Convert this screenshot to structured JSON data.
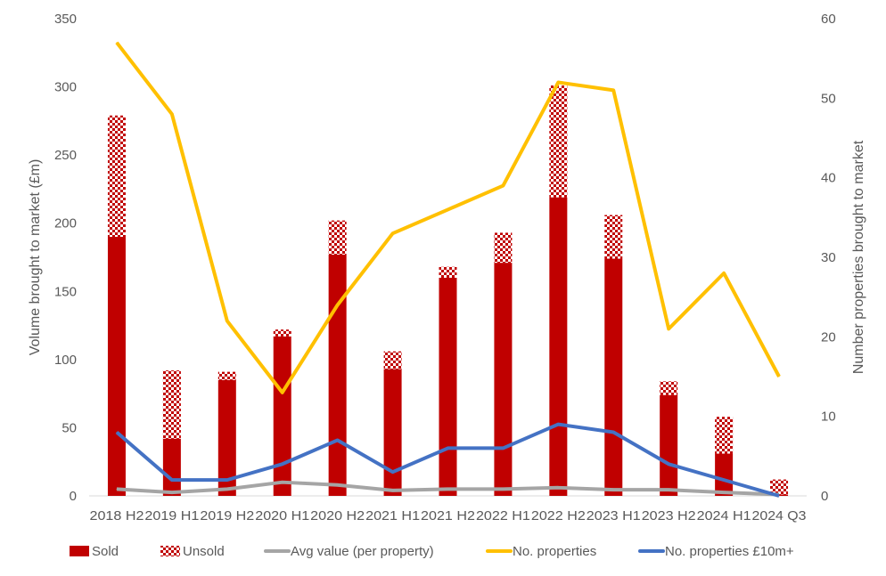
{
  "chart_data": {
    "type": "bar",
    "categories": [
      "2018 H2",
      "2019 H1",
      "2019 H2",
      "2020 H1",
      "2020 H2",
      "2021 H1",
      "2021 H2",
      "2022 H1",
      "2022 H2",
      "2023 H1",
      "2023 H2",
      "2024 H1",
      "2024 Q3"
    ],
    "ylabel": "Volume brought to market (£m)",
    "y2label": "Number properties brought to market",
    "ylim": [
      0,
      350
    ],
    "y2lim": [
      0,
      60
    ],
    "yticks": [
      0,
      50,
      100,
      150,
      200,
      250,
      300,
      350
    ],
    "y2ticks": [
      0,
      10,
      20,
      30,
      40,
      50,
      60
    ],
    "grid": false,
    "legend_position": "bottom",
    "series": [
      {
        "name": "Sold",
        "kind": "stacked-bar",
        "axis": "left",
        "color": "#C00000",
        "values": [
          190,
          42,
          85,
          117,
          177,
          93,
          160,
          171,
          219,
          174,
          74,
          31,
          1
        ]
      },
      {
        "name": "Unsold",
        "kind": "stacked-bar",
        "axis": "left",
        "color": "#C00000",
        "pattern": "checker",
        "values": [
          89,
          50,
          6,
          5,
          25,
          13,
          8,
          22,
          82,
          32,
          10,
          27,
          11
        ]
      },
      {
        "name": "Avg value (per property)",
        "kind": "line",
        "axis": "left",
        "color": "#A5A5A5",
        "values": [
          5,
          2.5,
          5,
          10,
          8,
          4,
          5,
          5,
          6,
          4.5,
          4.5,
          2.5,
          1
        ]
      },
      {
        "name": "No. properties",
        "kind": "line",
        "axis": "right",
        "color": "#FFC000",
        "values": [
          57,
          48,
          22,
          13,
          24,
          33,
          36,
          39,
          52,
          51,
          21,
          28,
          15
        ]
      },
      {
        "name": "No. properties £10m+",
        "kind": "line",
        "axis": "right",
        "color": "#4472C4",
        "values": [
          8,
          2,
          2,
          4,
          7,
          3,
          6,
          6,
          9,
          8,
          4,
          2,
          0
        ]
      }
    ]
  }
}
